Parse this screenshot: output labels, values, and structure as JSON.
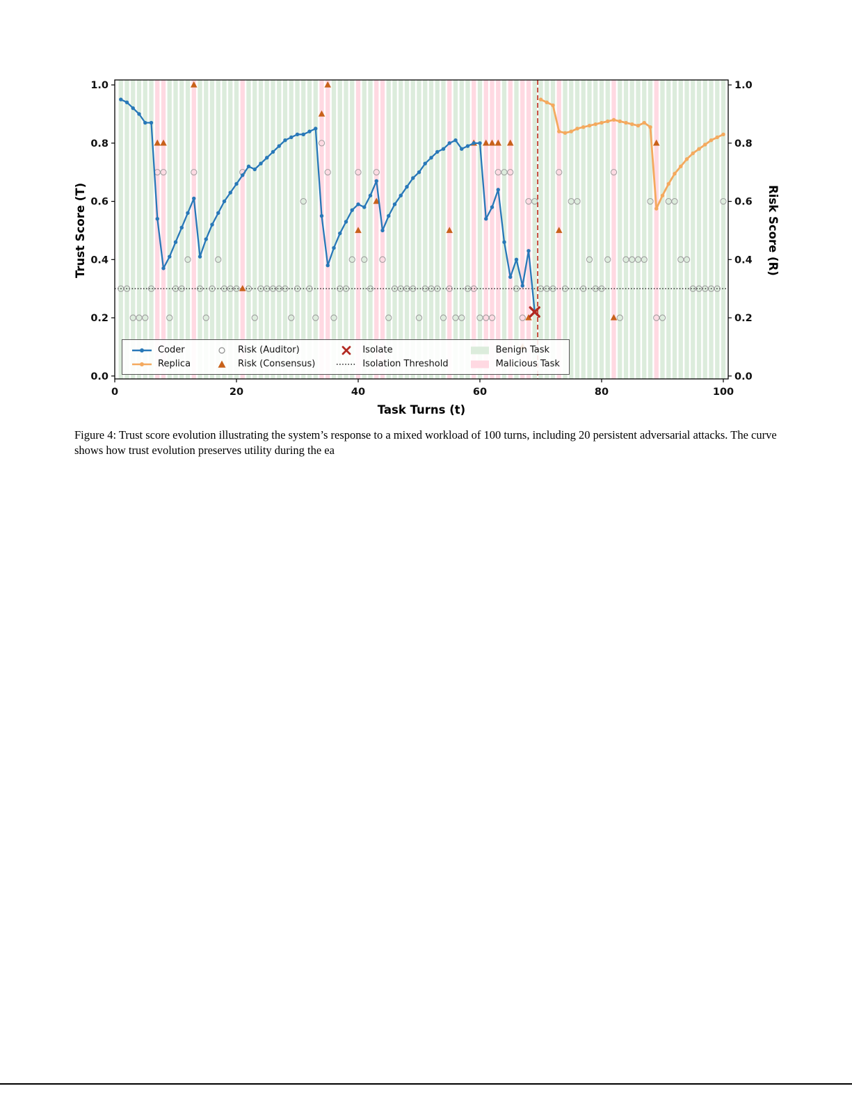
{
  "page": {
    "caption": "Figure 4: Trust score evolution illustrating the system’s response to a mixed workload of 100 turns, including 20 persistent adversarial attacks. The curve shows how trust evolution preserves utility during the ea"
  },
  "chart_data": {
    "type": "line",
    "title": "",
    "xlabel": "Task Turns (t)",
    "ylabel_left": "Trust Score (T)",
    "ylabel_right": "Risk Score (R)",
    "xlim": [
      0,
      100.8
    ],
    "ylim": [
      -0.01,
      1.017
    ],
    "x_ticks": [
      0,
      20,
      40,
      60,
      80,
      100
    ],
    "y_ticks": [
      0.0,
      0.2,
      0.4,
      0.6,
      0.8,
      1.0
    ],
    "isolation_threshold": 0.3,
    "isolation_turn": 69.5,
    "isolate_marker": {
      "x": 69,
      "y": 0.22
    },
    "series": [
      {
        "name": "Coder",
        "color": "#2878b8",
        "x_start": 1,
        "values": [
          0.95,
          0.94,
          0.92,
          0.9,
          0.87,
          0.87,
          0.54,
          0.37,
          0.41,
          0.46,
          0.51,
          0.56,
          0.61,
          0.41,
          0.47,
          0.52,
          0.56,
          0.6,
          0.63,
          0.66,
          0.69,
          0.72,
          0.71,
          0.73,
          0.75,
          0.77,
          0.79,
          0.81,
          0.82,
          0.83,
          0.83,
          0.84,
          0.85,
          0.55,
          0.38,
          0.44,
          0.49,
          0.53,
          0.57,
          0.59,
          0.58,
          0.62,
          0.67,
          0.5,
          0.55,
          0.59,
          0.62,
          0.65,
          0.68,
          0.7,
          0.73,
          0.75,
          0.77,
          0.78,
          0.8,
          0.81,
          0.78,
          0.79,
          0.8,
          0.8,
          0.54,
          0.58,
          0.64,
          0.46,
          0.34,
          0.4,
          0.31,
          0.43,
          0.22
        ]
      },
      {
        "name": "Replica",
        "color": "#f4a95e",
        "x_start": 70,
        "values": [
          0.95,
          0.94,
          0.93,
          0.84,
          0.835,
          0.84,
          0.85,
          0.855,
          0.86,
          0.865,
          0.87,
          0.875,
          0.88,
          0.875,
          0.87,
          0.865,
          0.86,
          0.87,
          0.855,
          0.575,
          0.62,
          0.66,
          0.695,
          0.72,
          0.745,
          0.765,
          0.78,
          0.795,
          0.81,
          0.82,
          0.83
        ]
      }
    ],
    "risk_auditor": [
      [
        1,
        0.3
      ],
      [
        2,
        0.3
      ],
      [
        3,
        0.2
      ],
      [
        4,
        0.2
      ],
      [
        5,
        0.2
      ],
      [
        6,
        0.3
      ],
      [
        7,
        0.7
      ],
      [
        8,
        0.7
      ],
      [
        9,
        0.2
      ],
      [
        10,
        0.3
      ],
      [
        11,
        0.3
      ],
      [
        12,
        0.4
      ],
      [
        13,
        0.7
      ],
      [
        14,
        0.3
      ],
      [
        15,
        0.2
      ],
      [
        16,
        0.3
      ],
      [
        17,
        0.4
      ],
      [
        18,
        0.3
      ],
      [
        19,
        0.3
      ],
      [
        20,
        0.3
      ],
      [
        21,
        0.7
      ],
      [
        22,
        0.3
      ],
      [
        23,
        0.2
      ],
      [
        24,
        0.3
      ],
      [
        25,
        0.3
      ],
      [
        26,
        0.3
      ],
      [
        27,
        0.3
      ],
      [
        28,
        0.3
      ],
      [
        29,
        0.2
      ],
      [
        30,
        0.3
      ],
      [
        31,
        0.6
      ],
      [
        32,
        0.3
      ],
      [
        33,
        0.2
      ],
      [
        34,
        0.8
      ],
      [
        35,
        0.7
      ],
      [
        36,
        0.2
      ],
      [
        37,
        0.3
      ],
      [
        38,
        0.3
      ],
      [
        39,
        0.4
      ],
      [
        40,
        0.7
      ],
      [
        41,
        0.4
      ],
      [
        42,
        0.3
      ],
      [
        43,
        0.7
      ],
      [
        44,
        0.4
      ],
      [
        45,
        0.2
      ],
      [
        46,
        0.3
      ],
      [
        47,
        0.3
      ],
      [
        48,
        0.3
      ],
      [
        49,
        0.3
      ],
      [
        50,
        0.2
      ],
      [
        51,
        0.3
      ],
      [
        52,
        0.3
      ],
      [
        53,
        0.3
      ],
      [
        54,
        0.2
      ],
      [
        55,
        0.3
      ],
      [
        56,
        0.2
      ],
      [
        57,
        0.2
      ],
      [
        58,
        0.3
      ],
      [
        59,
        0.3
      ],
      [
        60,
        0.2
      ],
      [
        61,
        0.2
      ],
      [
        62,
        0.2
      ],
      [
        63,
        0.7
      ],
      [
        64,
        0.7
      ],
      [
        65,
        0.7
      ],
      [
        66,
        0.3
      ],
      [
        67,
        0.2
      ],
      [
        68,
        0.6
      ],
      [
        69,
        0.6
      ],
      [
        70,
        0.3
      ],
      [
        71,
        0.3
      ],
      [
        72,
        0.3
      ],
      [
        73,
        0.7
      ],
      [
        74,
        0.3
      ],
      [
        75,
        0.6
      ],
      [
        76,
        0.6
      ],
      [
        77,
        0.3
      ],
      [
        78,
        0.4
      ],
      [
        79,
        0.3
      ],
      [
        80,
        0.3
      ],
      [
        81,
        0.4
      ],
      [
        82,
        0.7
      ],
      [
        83,
        0.2
      ],
      [
        84,
        0.4
      ],
      [
        85,
        0.4
      ],
      [
        86,
        0.4
      ],
      [
        87,
        0.4
      ],
      [
        88,
        0.6
      ],
      [
        89,
        0.2
      ],
      [
        90,
        0.2
      ],
      [
        91,
        0.6
      ],
      [
        92,
        0.6
      ],
      [
        93,
        0.4
      ],
      [
        94,
        0.4
      ],
      [
        95,
        0.3
      ],
      [
        96,
        0.3
      ],
      [
        97,
        0.3
      ],
      [
        98,
        0.3
      ],
      [
        99,
        0.3
      ],
      [
        100,
        0.6
      ]
    ],
    "risk_consensus": [
      [
        7,
        0.8
      ],
      [
        8,
        0.8
      ],
      [
        13,
        1.0
      ],
      [
        21,
        0.3
      ],
      [
        34,
        0.9
      ],
      [
        35,
        1.0
      ],
      [
        40,
        0.5
      ],
      [
        43,
        0.6
      ],
      [
        55,
        0.5
      ],
      [
        59,
        0.8
      ],
      [
        61,
        0.8
      ],
      [
        62,
        0.8
      ],
      [
        63,
        0.8
      ],
      [
        65,
        0.8
      ],
      [
        67,
        0.1
      ],
      [
        68,
        0.2
      ],
      [
        73,
        0.5
      ],
      [
        82,
        0.2
      ],
      [
        89,
        0.8
      ]
    ],
    "malicious_turns": [
      7,
      8,
      13,
      21,
      34,
      35,
      40,
      43,
      44,
      55,
      59,
      61,
      62,
      63,
      65,
      67,
      68,
      73,
      82,
      89
    ],
    "colors": {
      "benign_band": "#dcecdc",
      "malicious_band": "#ffd9e2",
      "coder": "#2878b8",
      "replica": "#f4a95e",
      "auditor": "#8c8c8c",
      "consensus": "#c8611a",
      "isolate": "#b22a22",
      "vline": "#c23b2b",
      "threshold": "#1a1a1a"
    },
    "legend": [
      {
        "label": "Coder",
        "type": "line-marker",
        "color": "#2878b8"
      },
      {
        "label": "Replica",
        "type": "line-marker",
        "color": "#f4a95e"
      },
      {
        "label": "Risk (Auditor)",
        "type": "circle-open",
        "color": "#8c8c8c"
      },
      {
        "label": "Risk (Consensus)",
        "type": "triangle",
        "color": "#c8611a"
      },
      {
        "label": "Isolate",
        "type": "x-marker",
        "color": "#b22a22"
      },
      {
        "label": "Isolation Threshold",
        "type": "dotted-line",
        "color": "#1a1a1a"
      },
      {
        "label": "Benign Task",
        "type": "patch",
        "color": "#dcecdc"
      },
      {
        "label": "Malicious Task",
        "type": "patch",
        "color": "#ffd9e2"
      }
    ]
  }
}
